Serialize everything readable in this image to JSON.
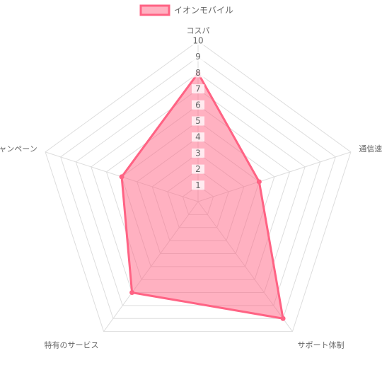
{
  "chart_data": {
    "type": "radar",
    "categories": [
      "コスパ",
      "通信速度",
      "サポート体制",
      "特有のサービス",
      "キャンペーン"
    ],
    "series": [
      {
        "name": "イオンモバイル",
        "color": "#ff6384",
        "values": [
          8,
          4,
          9,
          7,
          5
        ]
      }
    ],
    "rlim": [
      0,
      10
    ],
    "rticks": [
      1,
      2,
      3,
      4,
      5,
      6,
      7,
      8,
      9,
      10
    ],
    "grid": true,
    "legend": "top"
  }
}
